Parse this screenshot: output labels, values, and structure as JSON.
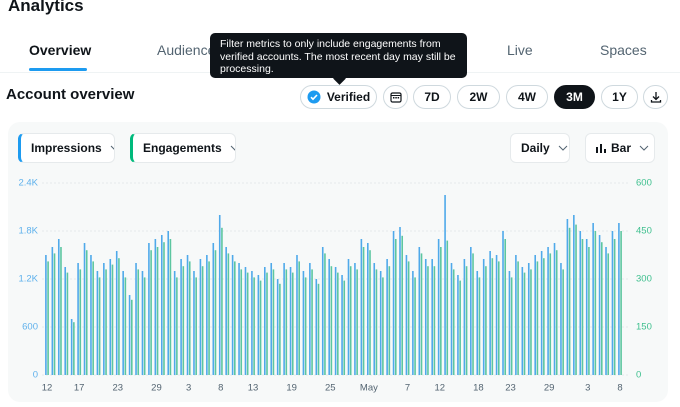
{
  "header": {
    "title": "Analytics"
  },
  "tabs": [
    "Overview",
    "Audience",
    "Live",
    "Spaces"
  ],
  "tooltip": "Filter metrics to only include engagements from verified accounts. The most recent day may still be processing.",
  "section_title": "Account overview",
  "verified_filter": "Verified",
  "time_ranges": [
    "7D",
    "2W",
    "4W",
    "3M",
    "1Y"
  ],
  "selected_range": "3M",
  "chart_controls": {
    "interval": "Daily",
    "chart_style": "Bar"
  },
  "chart_data": {
    "type": "bar",
    "categories": [
      "12",
      null,
      null,
      null,
      null,
      "17",
      null,
      null,
      null,
      null,
      null,
      "23",
      null,
      null,
      null,
      null,
      null,
      "29",
      null,
      null,
      null,
      null,
      "3",
      null,
      null,
      null,
      null,
      "8",
      null,
      null,
      null,
      null,
      "13",
      null,
      null,
      null,
      null,
      null,
      "19",
      null,
      null,
      null,
      null,
      null,
      "25",
      null,
      null,
      null,
      null,
      null,
      "May",
      null,
      null,
      null,
      null,
      null,
      "7",
      null,
      null,
      null,
      null,
      "12",
      null,
      null,
      null,
      null,
      null,
      "18",
      null,
      null,
      null,
      null,
      "23",
      null,
      null,
      null,
      null,
      null,
      "29",
      null,
      null,
      null,
      null,
      null,
      "3",
      null,
      null,
      null,
      null,
      "8"
    ],
    "series": [
      {
        "name": "Impressions",
        "color": "#4fa9ea",
        "values": [
          1500,
          1600,
          1700,
          1350,
          700,
          1400,
          1650,
          1500,
          1300,
          1400,
          1450,
          1550,
          1300,
          1000,
          1400,
          1300,
          1650,
          1700,
          1750,
          1800,
          1300,
          1450,
          1500,
          1300,
          1450,
          1500,
          1650,
          2000,
          1600,
          1500,
          1400,
          1350,
          1300,
          1250,
          1350,
          1400,
          1200,
          1400,
          1350,
          1500,
          1300,
          1400,
          1200,
          1600,
          1450,
          1350,
          1250,
          1450,
          1400,
          1700,
          1650,
          1400,
          1300,
          1450,
          1800,
          1850,
          1500,
          1300,
          1600,
          1450,
          1450,
          1700,
          2250,
          1400,
          1250,
          1450,
          1600,
          1300,
          1450,
          1550,
          1500,
          1800,
          1300,
          1500,
          1350,
          1400,
          1500,
          1550,
          1600,
          1650,
          1400,
          1950,
          2000,
          1800,
          1700,
          1900,
          1750,
          1600,
          1800,
          1900
        ]
      },
      {
        "name": "Engagements",
        "color": "#5cc6a0",
        "axis": "y2",
        "values": [
          355,
          380,
          400,
          320,
          165,
          330,
          390,
          355,
          305,
          330,
          345,
          365,
          305,
          235,
          330,
          305,
          390,
          400,
          415,
          425,
          305,
          340,
          355,
          305,
          340,
          355,
          390,
          460,
          380,
          355,
          330,
          320,
          305,
          295,
          320,
          330,
          285,
          330,
          320,
          355,
          305,
          330,
          285,
          380,
          340,
          320,
          295,
          340,
          330,
          400,
          390,
          330,
          305,
          340,
          425,
          435,
          355,
          305,
          380,
          340,
          340,
          400,
          420,
          330,
          295,
          340,
          380,
          305,
          340,
          365,
          355,
          425,
          305,
          355,
          320,
          330,
          355,
          365,
          380,
          390,
          330,
          460,
          470,
          425,
          400,
          450,
          415,
          380,
          425,
          450
        ]
      }
    ],
    "ylim": [
      0,
      2400
    ],
    "yticks": [
      0,
      600,
      {
        "value": 1200,
        "label": "1.2K"
      },
      {
        "value": 1800,
        "label": "1.8K"
      },
      {
        "value": 2400,
        "label": "2.4K"
      }
    ],
    "y2lim": [
      0,
      600
    ],
    "y2ticks": [
      0,
      150,
      300,
      450,
      600
    ],
    "grid": true
  }
}
